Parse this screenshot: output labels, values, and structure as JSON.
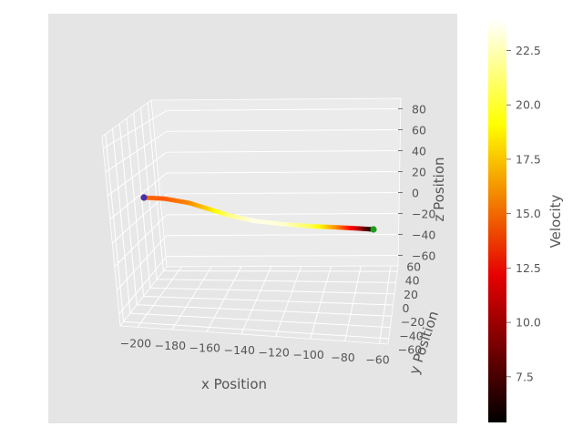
{
  "chart_data": {
    "type": "scatter",
    "subtype": "3d-trajectory",
    "title": "",
    "xlabel": "x Position",
    "ylabel": "y Position",
    "zlabel": "z Position",
    "xlim": [
      -210,
      -55
    ],
    "ylim": [
      -70,
      70
    ],
    "zlim": [
      -70,
      90
    ],
    "x_ticks": [
      -200,
      -180,
      -160,
      -140,
      -120,
      -100,
      -80,
      -60
    ],
    "y_ticks": [
      -60,
      -40,
      -20,
      0,
      20,
      40,
      60
    ],
    "z_ticks": [
      -60,
      -40,
      -20,
      0,
      20,
      40,
      60,
      80
    ],
    "colorbar": {
      "label": "Velocity",
      "colormap": "hot",
      "range": [
        5.4,
        23.9
      ],
      "ticks": [
        7.5,
        10.0,
        12.5,
        15.0,
        17.5,
        20.0,
        22.5
      ]
    },
    "trajectory_samples": [
      {
        "x": -180,
        "z": 10,
        "velocity": 15.2
      },
      {
        "x": -170,
        "z": 9,
        "velocity": 14.5
      },
      {
        "x": -158,
        "z": 5,
        "velocity": 15.8
      },
      {
        "x": -148,
        "z": -1,
        "velocity": 18.0
      },
      {
        "x": -138,
        "z": -7,
        "velocity": 21.5
      },
      {
        "x": -126,
        "z": -12,
        "velocity": 23.5
      },
      {
        "x": -112,
        "z": -15,
        "velocity": 23.0
      },
      {
        "x": -98,
        "z": -17,
        "velocity": 20.5
      },
      {
        "x": -86,
        "z": -18,
        "velocity": 16.0
      },
      {
        "x": -76,
        "z": -19,
        "velocity": 11.0
      },
      {
        "x": -68,
        "z": -20,
        "velocity": 5.5
      }
    ],
    "start_marker": {
      "x": -180,
      "z": 10,
      "color": "#4b2ea8"
    },
    "end_marker": {
      "x": -68,
      "z": -20,
      "color": "#1a9e1a"
    },
    "grid": true,
    "style": "ggplot"
  }
}
